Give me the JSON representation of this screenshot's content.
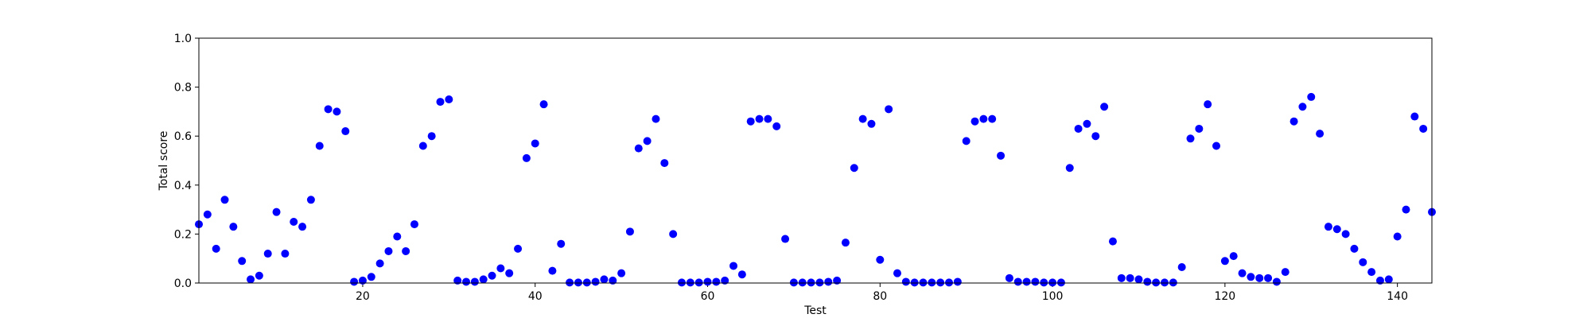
{
  "chart_data": {
    "type": "scatter",
    "xlabel": "Test",
    "ylabel": "Total score",
    "xlim": [
      1,
      144
    ],
    "ylim": [
      0,
      1.0
    ],
    "x_ticks": [
      20,
      40,
      60,
      80,
      100,
      120,
      140
    ],
    "y_ticks": [
      0.0,
      0.2,
      0.4,
      0.6,
      0.8,
      1.0
    ],
    "y_tick_labels": [
      "0.0",
      "0.2",
      "0.4",
      "0.6",
      "0.8",
      "1.0"
    ],
    "grid": false,
    "marker_color": "#0000ff",
    "points": [
      [
        1,
        0.24
      ],
      [
        2,
        0.28
      ],
      [
        3,
        0.14
      ],
      [
        4,
        0.34
      ],
      [
        5,
        0.23
      ],
      [
        6,
        0.09
      ],
      [
        7,
        0.015
      ],
      [
        8,
        0.03
      ],
      [
        9,
        0.12
      ],
      [
        10,
        0.29
      ],
      [
        11,
        0.12
      ],
      [
        12,
        0.25
      ],
      [
        13,
        0.23
      ],
      [
        14,
        0.34
      ],
      [
        15,
        0.56
      ],
      [
        16,
        0.71
      ],
      [
        17,
        0.7
      ],
      [
        18,
        0.62
      ],
      [
        19,
        0.005
      ],
      [
        20,
        0.01
      ],
      [
        21,
        0.025
      ],
      [
        22,
        0.08
      ],
      [
        23,
        0.13
      ],
      [
        24,
        0.19
      ],
      [
        25,
        0.13
      ],
      [
        26,
        0.24
      ],
      [
        27,
        0.56
      ],
      [
        28,
        0.6
      ],
      [
        29,
        0.74
      ],
      [
        30,
        0.75
      ],
      [
        31,
        0.01
      ],
      [
        32,
        0.005
      ],
      [
        33,
        0.005
      ],
      [
        34,
        0.015
      ],
      [
        35,
        0.03
      ],
      [
        36,
        0.06
      ],
      [
        37,
        0.04
      ],
      [
        38,
        0.14
      ],
      [
        39,
        0.51
      ],
      [
        40,
        0.57
      ],
      [
        41,
        0.73
      ],
      [
        42,
        0.05
      ],
      [
        43,
        0.16
      ],
      [
        44,
        0.002
      ],
      [
        45,
        0.002
      ],
      [
        46,
        0.002
      ],
      [
        47,
        0.005
      ],
      [
        48,
        0.015
      ],
      [
        49,
        0.01
      ],
      [
        50,
        0.04
      ],
      [
        51,
        0.21
      ],
      [
        52,
        0.55
      ],
      [
        53,
        0.58
      ],
      [
        54,
        0.67
      ],
      [
        55,
        0.49
      ],
      [
        56,
        0.2
      ],
      [
        57,
        0.002
      ],
      [
        58,
        0.002
      ],
      [
        59,
        0.002
      ],
      [
        60,
        0.005
      ],
      [
        61,
        0.005
      ],
      [
        62,
        0.01
      ],
      [
        63,
        0.07
      ],
      [
        64,
        0.035
      ],
      [
        65,
        0.66
      ],
      [
        66,
        0.67
      ],
      [
        67,
        0.67
      ],
      [
        68,
        0.64
      ],
      [
        69,
        0.18
      ],
      [
        70,
        0.002
      ],
      [
        71,
        0.002
      ],
      [
        72,
        0.002
      ],
      [
        73,
        0.002
      ],
      [
        74,
        0.005
      ],
      [
        75,
        0.01
      ],
      [
        76,
        0.165
      ],
      [
        77,
        0.47
      ],
      [
        78,
        0.67
      ],
      [
        79,
        0.65
      ],
      [
        80,
        0.095
      ],
      [
        81,
        0.71
      ],
      [
        82,
        0.04
      ],
      [
        83,
        0.005
      ],
      [
        84,
        0.002
      ],
      [
        85,
        0.002
      ],
      [
        86,
        0.002
      ],
      [
        87,
        0.002
      ],
      [
        88,
        0.002
      ],
      [
        89,
        0.005
      ],
      [
        90,
        0.58
      ],
      [
        91,
        0.66
      ],
      [
        92,
        0.67
      ],
      [
        93,
        0.67
      ],
      [
        94,
        0.52
      ],
      [
        95,
        0.02
      ],
      [
        96,
        0.005
      ],
      [
        97,
        0.005
      ],
      [
        98,
        0.005
      ],
      [
        99,
        0.002
      ],
      [
        100,
        0.002
      ],
      [
        101,
        0.002
      ],
      [
        102,
        0.47
      ],
      [
        103,
        0.63
      ],
      [
        104,
        0.65
      ],
      [
        105,
        0.6
      ],
      [
        106,
        0.72
      ],
      [
        107,
        0.17
      ],
      [
        108,
        0.02
      ],
      [
        109,
        0.02
      ],
      [
        110,
        0.015
      ],
      [
        111,
        0.005
      ],
      [
        112,
        0.002
      ],
      [
        113,
        0.002
      ],
      [
        114,
        0.002
      ],
      [
        115,
        0.065
      ],
      [
        116,
        0.59
      ],
      [
        117,
        0.63
      ],
      [
        118,
        0.73
      ],
      [
        119,
        0.56
      ],
      [
        120,
        0.09
      ],
      [
        121,
        0.11
      ],
      [
        122,
        0.04
      ],
      [
        123,
        0.025
      ],
      [
        124,
        0.02
      ],
      [
        125,
        0.02
      ],
      [
        126,
        0.005
      ],
      [
        127,
        0.045
      ],
      [
        128,
        0.66
      ],
      [
        129,
        0.72
      ],
      [
        130,
        0.76
      ],
      [
        131,
        0.61
      ],
      [
        132,
        0.23
      ],
      [
        133,
        0.22
      ],
      [
        134,
        0.2
      ],
      [
        135,
        0.14
      ],
      [
        136,
        0.085
      ],
      [
        137,
        0.045
      ],
      [
        138,
        0.01
      ],
      [
        139,
        0.015
      ],
      [
        140,
        0.19
      ],
      [
        141,
        0.3
      ],
      [
        142,
        0.68
      ],
      [
        143,
        0.63
      ],
      [
        144,
        0.29
      ]
    ]
  }
}
